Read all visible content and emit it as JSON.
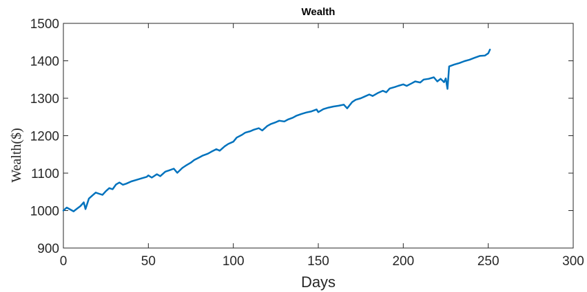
{
  "chart_data": {
    "type": "line",
    "title": "Wealth",
    "xlabel": "Days",
    "ylabel": "Wealth($)",
    "xlim": [
      0,
      300
    ],
    "ylim": [
      900,
      1500
    ],
    "xticks": [
      0,
      50,
      100,
      150,
      200,
      250,
      300
    ],
    "yticks": [
      900,
      1000,
      1100,
      1200,
      1300,
      1400,
      1500
    ],
    "xtick_labels": [
      "0",
      "50",
      "100",
      "150",
      "200",
      "250",
      "300"
    ],
    "ytick_labels": [
      "900",
      "1000",
      "1100",
      "1200",
      "1300",
      "1400",
      "1500"
    ],
    "grid": false,
    "legend": "none",
    "colors": {
      "line": "#0072BD",
      "axes": "#262626"
    },
    "series": [
      {
        "x": [
          0,
          2,
          4,
          6,
          8,
          10,
          12,
          13,
          15,
          17,
          19,
          21,
          23,
          25,
          27,
          29,
          31,
          33,
          35,
          37,
          40,
          43,
          46,
          49,
          50,
          52,
          55,
          57,
          60,
          62,
          65,
          67,
          70,
          72,
          75,
          77,
          80,
          82,
          85,
          87,
          90,
          92,
          95,
          97,
          100,
          102,
          105,
          107,
          110,
          112,
          115,
          117,
          120,
          122,
          125,
          127,
          130,
          132,
          135,
          137,
          140,
          143,
          146,
          149,
          150,
          153,
          156,
          159,
          162,
          165,
          167,
          170,
          172,
          175,
          177,
          180,
          182,
          185,
          188,
          190,
          192,
          195,
          197,
          200,
          202,
          205,
          207,
          210,
          212,
          215,
          218,
          220,
          222,
          224,
          225,
          226,
          227,
          230,
          233,
          236,
          239,
          242,
          245,
          248,
          250,
          251
        ],
        "y": [
          1000,
          1008,
          1003,
          998,
          1005,
          1012,
          1022,
          1004,
          1032,
          1040,
          1048,
          1045,
          1042,
          1052,
          1060,
          1057,
          1070,
          1075,
          1069,
          1072,
          1078,
          1082,
          1086,
          1090,
          1094,
          1088,
          1097,
          1092,
          1104,
          1107,
          1112,
          1101,
          1114,
          1120,
          1128,
          1135,
          1142,
          1147,
          1152,
          1157,
          1164,
          1160,
          1172,
          1178,
          1184,
          1195,
          1202,
          1208,
          1212,
          1216,
          1220,
          1214,
          1226,
          1231,
          1236,
          1240,
          1238,
          1243,
          1248,
          1253,
          1258,
          1262,
          1265,
          1270,
          1263,
          1271,
          1275,
          1278,
          1280,
          1283,
          1273,
          1290,
          1296,
          1300,
          1304,
          1310,
          1306,
          1314,
          1320,
          1316,
          1326,
          1330,
          1333,
          1337,
          1333,
          1340,
          1345,
          1342,
          1350,
          1352,
          1356,
          1345,
          1352,
          1343,
          1353,
          1325,
          1385,
          1390,
          1394,
          1399,
          1403,
          1408,
          1413,
          1414,
          1420,
          1430
        ]
      }
    ]
  }
}
